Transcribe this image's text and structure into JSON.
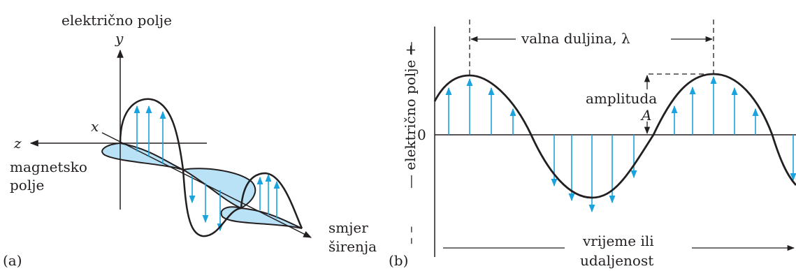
{
  "panel_a": {
    "tag": "(a)",
    "electric_field_label": "električno polje",
    "y_axis": "y",
    "x_axis": "x",
    "z_axis": "z",
    "magnetic_field_label_line1": "magnetsko",
    "magnetic_field_label_line2": "polje",
    "direction_label_line1": "smjer",
    "direction_label_line2": "širenja"
  },
  "panel_b": {
    "tag": "(b)",
    "wavelength_label": "valna duljina, λ",
    "amplitude_label": "amplituda",
    "amplitude_symbol": "A",
    "zero_label": "0",
    "y_axis_label": "— električno polje —",
    "y_plus": "+",
    "y_minus": "– –",
    "time_label_line1": "vrijeme ili",
    "time_label_line2": "udaljenost"
  },
  "colors": {
    "wave": "#231f20",
    "vector": "#1aa3dd",
    "magnetic_fill": "#b9e2f6",
    "text": "#231f20"
  }
}
